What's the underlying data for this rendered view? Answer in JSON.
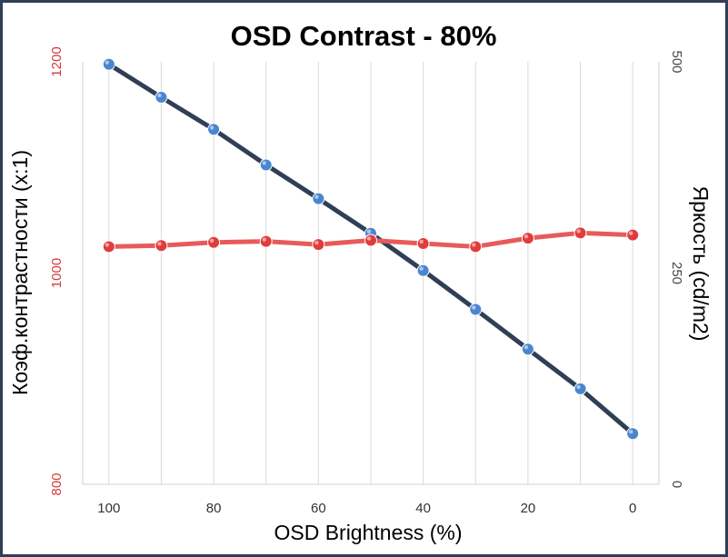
{
  "chart_data": {
    "type": "line",
    "title": "OSD Contrast - 80%",
    "xlabel": "OSD Brightness (%)",
    "ylabel_left": "Коэф.контрастности  (x:1)",
    "ylabel_right": "Яркость (cd/m2)",
    "x": [
      100,
      90,
      80,
      70,
      60,
      50,
      40,
      30,
      20,
      10,
      0
    ],
    "xticks": [
      "100",
      "80",
      "60",
      "40",
      "20",
      "0"
    ],
    "xtick_values": [
      100,
      80,
      60,
      40,
      20,
      0
    ],
    "xlim": [
      105,
      -5
    ],
    "ylim_left": [
      800,
      1200
    ],
    "yticks_left": [
      "800",
      "1000",
      "1200"
    ],
    "ylim_right": [
      0,
      500
    ],
    "yticks_right": [
      "0",
      "250",
      "500"
    ],
    "grid": true,
    "series": [
      {
        "axis": "left",
        "color": "#e03c3c",
        "line_color": "#e85a5a",
        "values": [
          1025,
          1026,
          1029,
          1030,
          1027,
          1031,
          1028,
          1025,
          1033,
          1038,
          1036
        ]
      },
      {
        "axis": "right",
        "color": "#4a86d0",
        "line_color": "#2f3f56",
        "values": [
          497,
          458,
          420,
          378,
          338,
          297,
          253,
          207,
          160,
          113,
          60
        ]
      }
    ]
  }
}
